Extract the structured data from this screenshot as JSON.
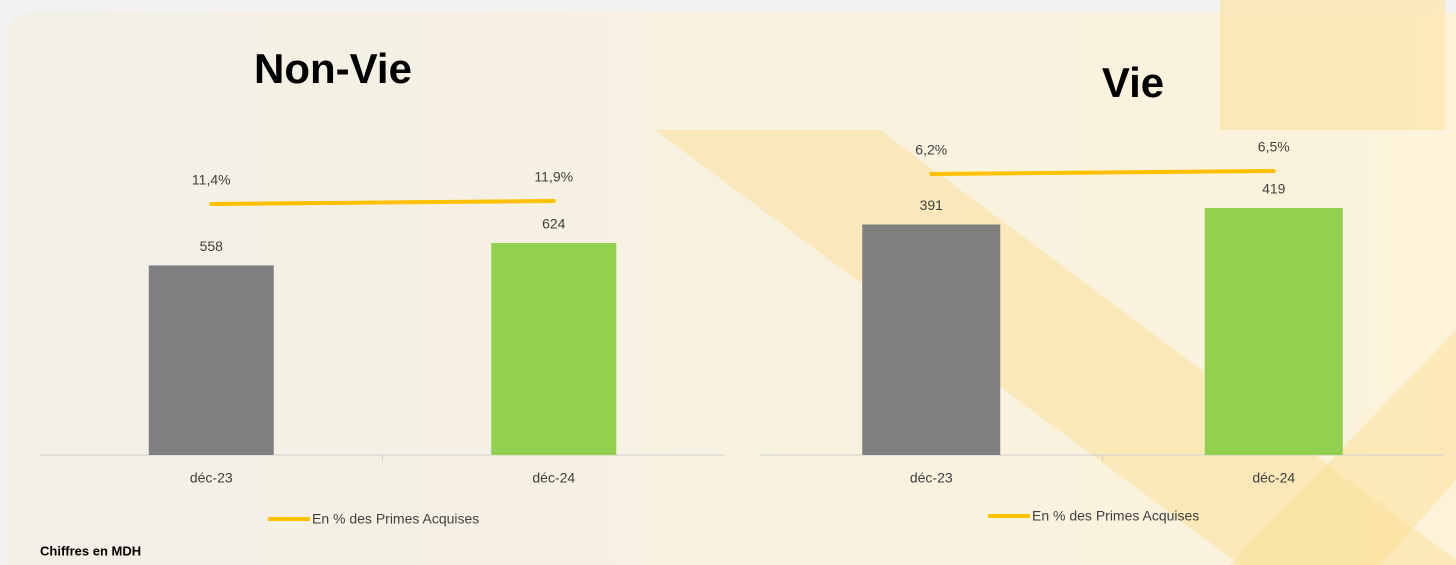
{
  "chart_data": [
    {
      "type": "bar",
      "title": "Non-Vie",
      "categories": [
        "déc-23",
        "déc-24"
      ],
      "values": [
        558,
        624
      ],
      "colors": [
        "#7f7f7f",
        "#92d050"
      ],
      "line": {
        "name": "En % des Primes Acquises",
        "color": "#ffc000",
        "values": [
          11.4,
          11.9
        ],
        "value_labels": [
          "11,4%",
          "11,9%"
        ]
      }
    },
    {
      "type": "bar",
      "title": "Vie",
      "categories": [
        "déc-23",
        "déc-24"
      ],
      "values": [
        391,
        419
      ],
      "colors": [
        "#7f7f7f",
        "#92d050"
      ],
      "line": {
        "name": "En % des Primes Acquises",
        "color": "#ffc000",
        "values": [
          6.2,
          6.5
        ],
        "value_labels": [
          "6,2%",
          "6,5%"
        ]
      }
    }
  ],
  "footnote": "Chiffres en MDH"
}
